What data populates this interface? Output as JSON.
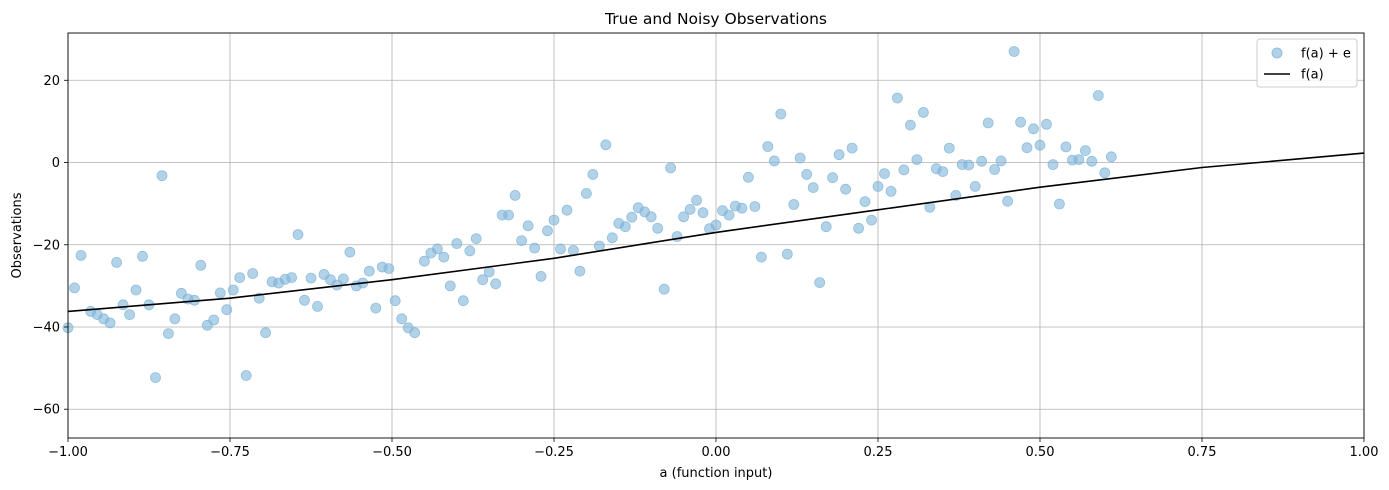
{
  "chart_data": {
    "type": "scatter",
    "title": "True and Noisy Observations",
    "xlabel": "a (function input)",
    "ylabel": "Observations",
    "xlim": [
      -1.0,
      1.0
    ],
    "ylim": [
      -67,
      31.5
    ],
    "xticks": [
      -1.0,
      -0.75,
      -0.5,
      -0.25,
      0.0,
      0.25,
      0.5,
      0.75,
      1.0
    ],
    "xtick_labels": [
      "−1.00",
      "−0.75",
      "−0.50",
      "−0.25",
      "0.00",
      "0.25",
      "0.50",
      "0.75",
      "1.00"
    ],
    "yticks": [
      -60,
      -40,
      -20,
      0,
      20
    ],
    "ytick_labels": [
      "−60",
      "−40",
      "−20",
      "0",
      "20"
    ],
    "grid": true,
    "legend_position": "top-right",
    "series": [
      {
        "name": "f(a) + e",
        "kind": "scatter",
        "color": "#7fb4d9",
        "points": [
          [
            -1.0,
            -40.2
          ],
          [
            -0.99,
            -30.5
          ],
          [
            -0.98,
            -22.6
          ],
          [
            -0.965,
            -36.2
          ],
          [
            -0.955,
            -37.0
          ],
          [
            -0.945,
            -38.0
          ],
          [
            -0.935,
            -39.0
          ],
          [
            -0.925,
            -24.3
          ],
          [
            -0.915,
            -34.6
          ],
          [
            -0.905,
            -37.0
          ],
          [
            -0.895,
            -31.0
          ],
          [
            -0.885,
            -22.8
          ],
          [
            -0.875,
            -34.6
          ],
          [
            -0.865,
            -52.3
          ],
          [
            -0.855,
            -3.2
          ],
          [
            -0.845,
            -41.6
          ],
          [
            -0.835,
            -38.0
          ],
          [
            -0.825,
            -31.8
          ],
          [
            -0.815,
            -33.2
          ],
          [
            -0.805,
            -33.5
          ],
          [
            -0.795,
            -25.0
          ],
          [
            -0.785,
            -39.6
          ],
          [
            -0.775,
            -38.3
          ],
          [
            -0.765,
            -31.7
          ],
          [
            -0.755,
            -35.8
          ],
          [
            -0.745,
            -31.0
          ],
          [
            -0.735,
            -28.0
          ],
          [
            -0.725,
            -51.8
          ],
          [
            -0.715,
            -27.0
          ],
          [
            -0.705,
            -33.0
          ],
          [
            -0.695,
            -41.4
          ],
          [
            -0.685,
            -29.0
          ],
          [
            -0.675,
            -29.3
          ],
          [
            -0.665,
            -28.4
          ],
          [
            -0.655,
            -28.0
          ],
          [
            -0.645,
            -17.5
          ],
          [
            -0.635,
            -33.5
          ],
          [
            -0.625,
            -28.1
          ],
          [
            -0.615,
            -35.0
          ],
          [
            -0.605,
            -27.2
          ],
          [
            -0.595,
            -28.5
          ],
          [
            -0.585,
            -29.8
          ],
          [
            -0.575,
            -28.3
          ],
          [
            -0.565,
            -21.8
          ],
          [
            -0.555,
            -30.0
          ],
          [
            -0.545,
            -29.3
          ],
          [
            -0.535,
            -26.4
          ],
          [
            -0.525,
            -35.4
          ],
          [
            -0.515,
            -25.4
          ],
          [
            -0.505,
            -25.8
          ],
          [
            -0.495,
            -33.6
          ],
          [
            -0.485,
            -38.0
          ],
          [
            -0.475,
            -40.2
          ],
          [
            -0.465,
            -41.4
          ],
          [
            -0.45,
            -24.0
          ],
          [
            -0.44,
            -22.0
          ],
          [
            -0.43,
            -21.0
          ],
          [
            -0.42,
            -23.0
          ],
          [
            -0.41,
            -30.0
          ],
          [
            -0.4,
            -19.7
          ],
          [
            -0.39,
            -33.6
          ],
          [
            -0.38,
            -21.5
          ],
          [
            -0.37,
            -18.5
          ],
          [
            -0.36,
            -28.5
          ],
          [
            -0.35,
            -26.6
          ],
          [
            -0.34,
            -29.5
          ],
          [
            -0.33,
            -12.8
          ],
          [
            -0.32,
            -12.8
          ],
          [
            -0.31,
            -8.0
          ],
          [
            -0.3,
            -19.0
          ],
          [
            -0.29,
            -15.4
          ],
          [
            -0.28,
            -20.8
          ],
          [
            -0.27,
            -27.7
          ],
          [
            -0.26,
            -16.6
          ],
          [
            -0.25,
            -14.0
          ],
          [
            -0.24,
            -21.0
          ],
          [
            -0.23,
            -11.6
          ],
          [
            -0.22,
            -21.4
          ],
          [
            -0.21,
            -26.4
          ],
          [
            -0.2,
            -7.5
          ],
          [
            -0.19,
            -2.9
          ],
          [
            -0.18,
            -20.3
          ],
          [
            -0.17,
            4.3
          ],
          [
            -0.16,
            -18.3
          ],
          [
            -0.15,
            -14.8
          ],
          [
            -0.14,
            -15.6
          ],
          [
            -0.13,
            -13.3
          ],
          [
            -0.12,
            -11.0
          ],
          [
            -0.11,
            -12.0
          ],
          [
            -0.1,
            -13.2
          ],
          [
            -0.09,
            -16.0
          ],
          [
            -0.08,
            -30.8
          ],
          [
            -0.07,
            -1.3
          ],
          [
            -0.06,
            -18.0
          ],
          [
            -0.05,
            -13.2
          ],
          [
            -0.04,
            -11.4
          ],
          [
            -0.03,
            -9.2
          ],
          [
            -0.02,
            -12.2
          ],
          [
            -0.01,
            -16.1
          ],
          [
            0.0,
            -15.2
          ],
          [
            0.01,
            -11.7
          ],
          [
            0.02,
            -12.8
          ],
          [
            0.03,
            -10.6
          ],
          [
            0.04,
            -11.1
          ],
          [
            0.05,
            -3.6
          ],
          [
            0.06,
            -10.7
          ],
          [
            0.07,
            -23.0
          ],
          [
            0.08,
            3.9
          ],
          [
            0.09,
            0.4
          ],
          [
            0.1,
            11.8
          ],
          [
            0.11,
            -22.3
          ],
          [
            0.12,
            -10.2
          ],
          [
            0.13,
            1.1
          ],
          [
            0.14,
            -2.9
          ],
          [
            0.15,
            -6.1
          ],
          [
            0.16,
            -29.2
          ],
          [
            0.17,
            -15.6
          ],
          [
            0.18,
            -3.7
          ],
          [
            0.19,
            1.9
          ],
          [
            0.2,
            -6.5
          ],
          [
            0.21,
            3.5
          ],
          [
            0.22,
            -16.0
          ],
          [
            0.23,
            -9.5
          ],
          [
            0.24,
            -14.0
          ],
          [
            0.25,
            -5.8
          ],
          [
            0.26,
            -2.7
          ],
          [
            0.27,
            -7.0
          ],
          [
            0.28,
            15.7
          ],
          [
            0.29,
            -1.8
          ],
          [
            0.3,
            9.1
          ],
          [
            0.31,
            0.7
          ],
          [
            0.32,
            12.2
          ],
          [
            0.33,
            -10.9
          ],
          [
            0.34,
            -1.5
          ],
          [
            0.35,
            -2.2
          ],
          [
            0.36,
            3.5
          ],
          [
            0.37,
            -8.0
          ],
          [
            0.38,
            -0.5
          ],
          [
            0.39,
            -0.6
          ],
          [
            0.4,
            -5.8
          ],
          [
            0.41,
            0.3
          ],
          [
            0.42,
            9.6
          ],
          [
            0.43,
            -1.7
          ],
          [
            0.44,
            0.4
          ],
          [
            0.45,
            -9.4
          ],
          [
            0.46,
            27.0
          ],
          [
            0.47,
            9.8
          ],
          [
            0.48,
            3.6
          ],
          [
            0.49,
            8.2
          ],
          [
            0.5,
            4.2
          ],
          [
            0.51,
            9.3
          ],
          [
            0.52,
            -0.5
          ],
          [
            0.53,
            -10.1
          ],
          [
            0.54,
            3.8
          ],
          [
            0.55,
            0.6
          ],
          [
            0.56,
            0.7
          ],
          [
            0.57,
            2.9
          ],
          [
            0.58,
            0.3
          ],
          [
            0.59,
            16.3
          ],
          [
            0.6,
            -2.5
          ],
          [
            0.61,
            1.4
          ]
        ]
      },
      {
        "name": "f(a)",
        "kind": "line",
        "color": "#000000",
        "x": [
          -1.0,
          -0.75,
          -0.5,
          -0.25,
          0.0,
          0.25,
          0.5,
          0.75,
          1.0
        ],
        "y": [
          -36.2,
          -33.0,
          -28.5,
          -23.3,
          -17.0,
          -11.5,
          -6.0,
          -1.2,
          2.3
        ]
      }
    ]
  }
}
